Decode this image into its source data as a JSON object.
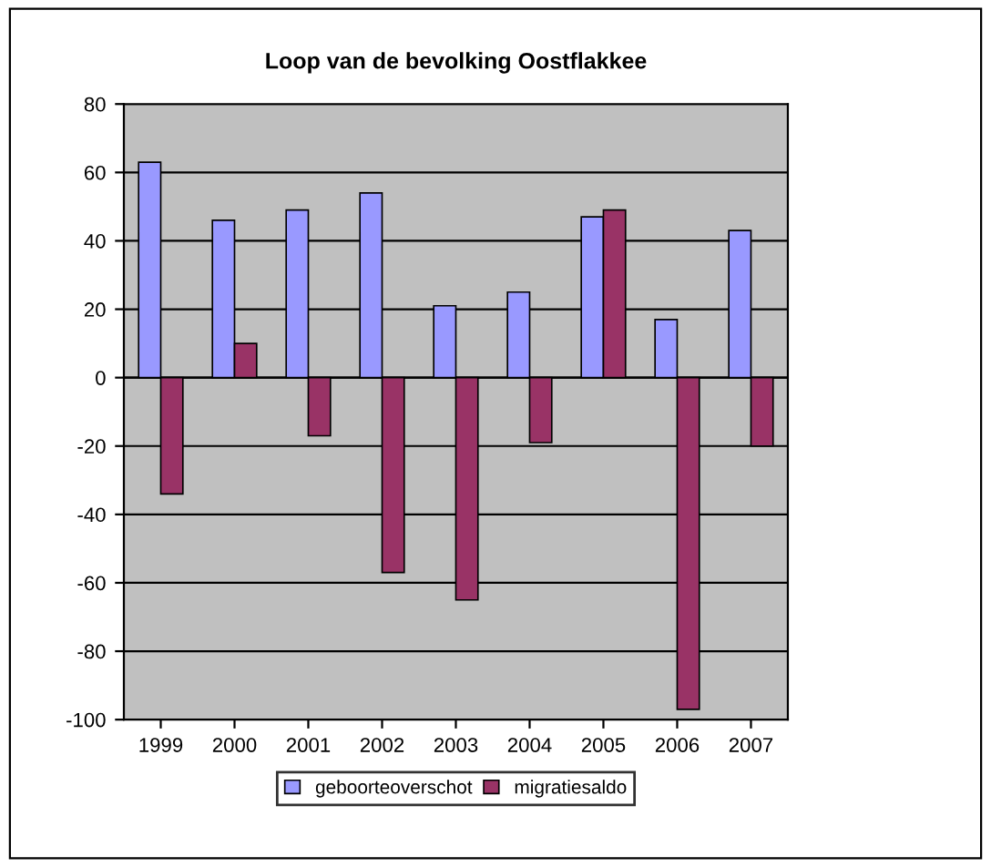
{
  "chart_data": {
    "type": "bar",
    "title": "Loop van de bevolking Oostflakkee",
    "categories": [
      "1999",
      "2000",
      "2001",
      "2002",
      "2003",
      "2004",
      "2005",
      "2006",
      "2007"
    ],
    "series": [
      {
        "name": "geboorteoverschot",
        "color": "#9999ff",
        "values": [
          63,
          46,
          49,
          54,
          21,
          25,
          47,
          17,
          43
        ]
      },
      {
        "name": "migratiesaldo",
        "color": "#993366",
        "values": [
          -34,
          10,
          -17,
          -57,
          -65,
          -19,
          49,
          -97,
          -20
        ]
      }
    ],
    "ylim": [
      -100,
      80
    ],
    "yticks": [
      -100,
      -80,
      -60,
      -40,
      -20,
      0,
      20,
      40,
      60,
      80
    ],
    "grid": "y",
    "legend": "bottom"
  }
}
